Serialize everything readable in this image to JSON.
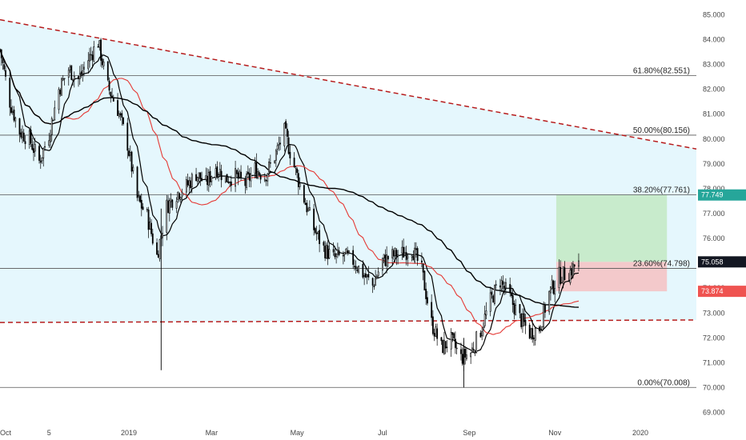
{
  "chart_data": {
    "type": "candlestick",
    "y_axis": {
      "ticks": [
        "85.000",
        "84.000",
        "83.000",
        "82.000",
        "81.000",
        "80.000",
        "79.000",
        "78.000",
        "77.000",
        "76.000",
        "75.000",
        "74.000",
        "73.000",
        "72.000",
        "71.000",
        "70.000",
        "69.000"
      ],
      "range": [
        68.6,
        85.4
      ]
    },
    "x_axis": {
      "ticks": [
        {
          "label": "Oct",
          "date": "2018-10-01"
        },
        {
          "label": "5",
          "date": "2018-11-05"
        },
        {
          "label": "2019",
          "date": "2019-01-01"
        },
        {
          "label": "Mar",
          "date": "2019-03-01"
        },
        {
          "label": "May",
          "date": "2019-05-01"
        },
        {
          "label": "Jul",
          "date": "2019-07-01"
        },
        {
          "label": "Sep",
          "date": "2019-09-01"
        },
        {
          "label": "Nov",
          "date": "2019-11-01"
        },
        {
          "label": "2020",
          "date": "2020-01-01"
        }
      ],
      "range": [
        "2018-10-01",
        "2020-02-10"
      ]
    },
    "fib_levels": [
      {
        "label": "61.80%(82.551)",
        "value": 82.551
      },
      {
        "label": "50.00%(80.156)",
        "value": 80.156
      },
      {
        "label": "38.20%(77.761)",
        "value": 77.761
      },
      {
        "label": "23.60%(74.798)",
        "value": 74.798
      },
      {
        "label": "0.00%(70.008)",
        "value": 70.008
      }
    ],
    "price_badges": [
      {
        "text": "77.749",
        "value": 77.749,
        "color": "#26a69a"
      },
      {
        "text": "75.058",
        "value": 75.058,
        "color": "#131722"
      },
      {
        "text": "73.874",
        "value": 73.874,
        "color": "#ef5350"
      }
    ],
    "trendlines": [
      {
        "name": "descending-resistance",
        "from": {
          "date": "2018-10-01",
          "value": 84.8
        },
        "to": {
          "date": "2020-02-10",
          "value": 79.6
        },
        "color": "#b71c1c",
        "style": "dashed"
      },
      {
        "name": "horizontal-support",
        "from": {
          "date": "2018-10-01",
          "value": 72.62
        },
        "to": {
          "date": "2020-02-10",
          "value": 72.72
        },
        "color": "#b71c1c",
        "style": "dashed"
      }
    ],
    "position_box": {
      "entry": 75.058,
      "target": 77.749,
      "stop": 73.874,
      "start": "2019-11-02",
      "end": "2020-01-20",
      "profit_color": "#c8ebcc",
      "loss_color": "#f3c9cb"
    },
    "background_fill": "#e5f7fd",
    "candle_up_color": "#000000",
    "candle_down_color": "#000000",
    "ma_colors": {
      "fast": "#000000",
      "medium": "#e53935",
      "slow": "#000000"
    },
    "price_path": [
      [
        "2018-10-01",
        83.6
      ],
      [
        "2018-10-08",
        81.5
      ],
      [
        "2018-10-15",
        80.3
      ],
      [
        "2018-10-22",
        80.0
      ],
      [
        "2018-10-29",
        79.1
      ],
      [
        "2018-11-05",
        80.2
      ],
      [
        "2018-11-12",
        82.0
      ],
      [
        "2018-11-19",
        82.8
      ],
      [
        "2018-11-26",
        82.4
      ],
      [
        "2018-12-03",
        83.2
      ],
      [
        "2018-12-10",
        83.9
      ],
      [
        "2018-12-17",
        82.1
      ],
      [
        "2018-12-24",
        81.2
      ],
      [
        "2018-12-31",
        79.8
      ],
      [
        "2019-01-07",
        77.6
      ],
      [
        "2019-01-14",
        76.9
      ],
      [
        "2019-01-21",
        75.3
      ],
      [
        "2019-01-28",
        77.3
      ],
      [
        "2019-02-04",
        77.8
      ],
      [
        "2019-02-11",
        78.1
      ],
      [
        "2019-02-18",
        78.6
      ],
      [
        "2019-02-25",
        78.2
      ],
      [
        "2019-03-04",
        78.9
      ],
      [
        "2019-03-11",
        78.4
      ],
      [
        "2019-03-18",
        78.5
      ],
      [
        "2019-03-25",
        78.2
      ],
      [
        "2019-04-01",
        78.8
      ],
      [
        "2019-04-08",
        78.5
      ],
      [
        "2019-04-15",
        79.3
      ],
      [
        "2019-04-22",
        80.3
      ],
      [
        "2019-04-29",
        78.9
      ],
      [
        "2019-05-06",
        77.6
      ],
      [
        "2019-05-13",
        76.4
      ],
      [
        "2019-05-20",
        75.6
      ],
      [
        "2019-05-27",
        75.2
      ],
      [
        "2019-06-03",
        75.3
      ],
      [
        "2019-06-10",
        75.1
      ],
      [
        "2019-06-17",
        74.6
      ],
      [
        "2019-06-24",
        74.1
      ],
      [
        "2019-07-01",
        75.1
      ],
      [
        "2019-07-08",
        75.3
      ],
      [
        "2019-07-15",
        75.4
      ],
      [
        "2019-07-22",
        75.6
      ],
      [
        "2019-07-29",
        74.7
      ],
      [
        "2019-08-05",
        72.6
      ],
      [
        "2019-08-12",
        71.6
      ],
      [
        "2019-08-19",
        71.9
      ],
      [
        "2019-08-26",
        71.2
      ],
      [
        "2019-09-02",
        71.4
      ],
      [
        "2019-09-09",
        72.3
      ],
      [
        "2019-09-16",
        73.5
      ],
      [
        "2019-09-23",
        74.3
      ],
      [
        "2019-09-30",
        73.6
      ],
      [
        "2019-10-07",
        72.8
      ],
      [
        "2019-10-14",
        72.2
      ],
      [
        "2019-10-21",
        72.4
      ],
      [
        "2019-10-28",
        73.8
      ],
      [
        "2019-11-04",
        74.5
      ],
      [
        "2019-11-11",
        74.6
      ],
      [
        "2019-11-18",
        75.1
      ]
    ],
    "wicks": [
      {
        "date": "2019-01-24",
        "low": 70.7,
        "high": 77.2
      },
      {
        "date": "2019-08-28",
        "low": 70.0,
        "high": 72.0
      }
    ]
  }
}
